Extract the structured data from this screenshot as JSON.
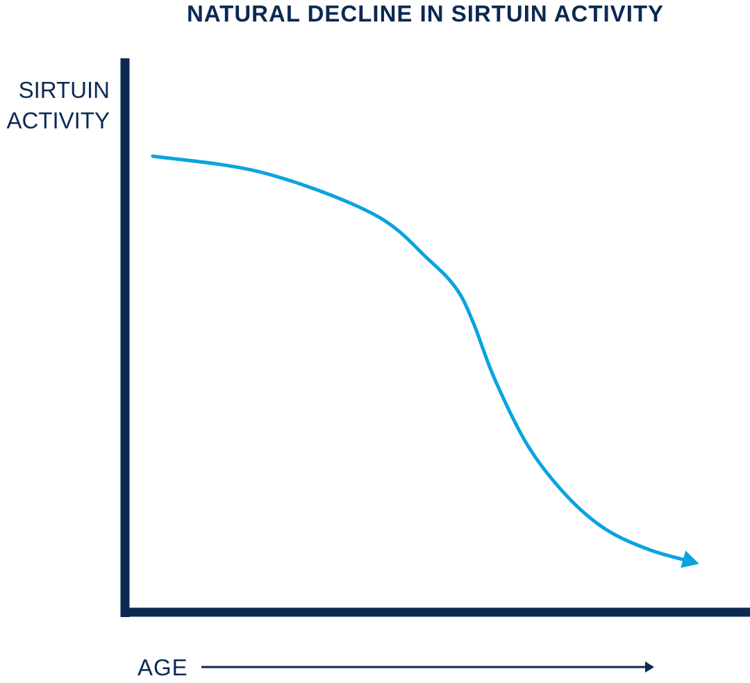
{
  "chart_data": {
    "type": "line",
    "title": "NATURAL DECLINE IN SIRTUIN ACTIVITY",
    "ylabel": [
      "SIRTUIN",
      "ACTIVITY"
    ],
    "xlabel": "AGE",
    "x_ticks": [],
    "y_ticks": [],
    "xlim": [
      0,
      100
    ],
    "ylim": [
      0,
      100
    ],
    "series": [
      {
        "name": "sirtuin-activity",
        "x": [
          0,
          20,
          40,
          50,
          55,
          58,
          62,
          68,
          75,
          82,
          90,
          98
        ],
        "y": [
          100,
          96,
          86,
          75,
          68,
          60,
          46,
          30,
          18,
          10,
          5,
          2
        ]
      }
    ],
    "grid": false,
    "legend": "none"
  },
  "colors": {
    "axis": "#0b2a52",
    "curve": "#0aa3e0",
    "text": "#0b2a52"
  }
}
